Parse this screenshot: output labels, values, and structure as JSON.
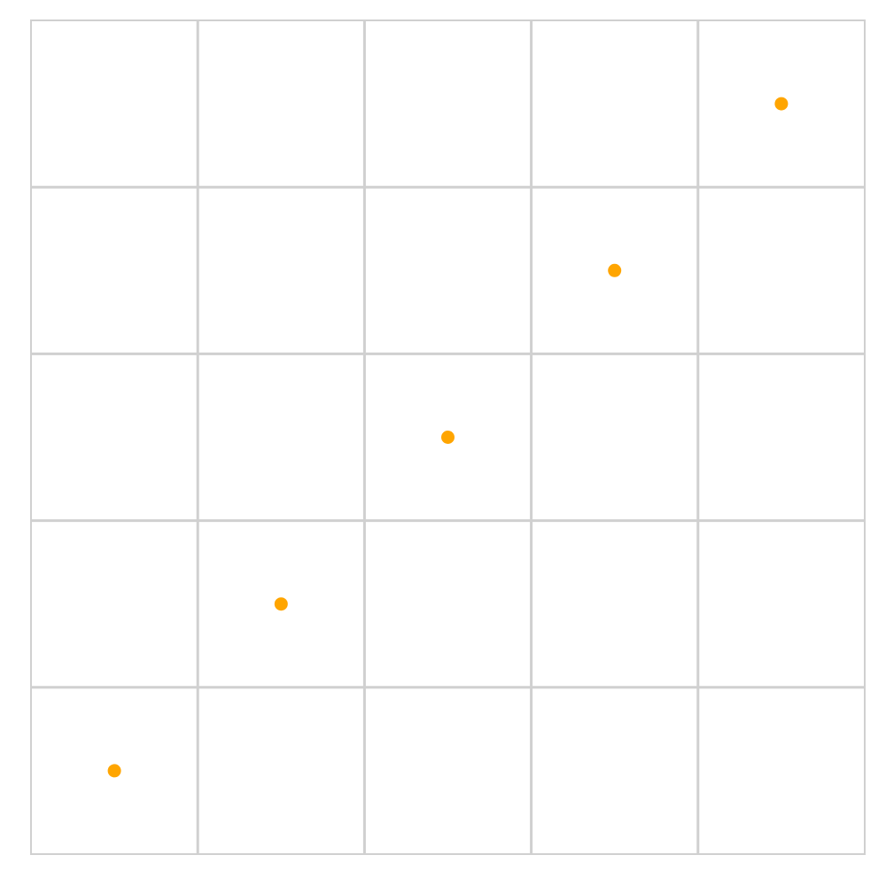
{
  "chart_data": {
    "type": "scatter",
    "title": "",
    "xlabel": "",
    "ylabel": "",
    "grid": true,
    "x_grid_cells": 5,
    "y_grid_cells": 5,
    "xlim": [
      0,
      5
    ],
    "ylim": [
      0,
      5
    ],
    "series": [
      {
        "points": [
          {
            "x": 0.5,
            "y": 0.5
          },
          {
            "x": 1.5,
            "y": 1.5
          },
          {
            "x": 2.5,
            "y": 2.5
          },
          {
            "x": 3.5,
            "y": 3.5
          },
          {
            "x": 4.5,
            "y": 4.5
          }
        ],
        "color": "#FFA500"
      }
    ],
    "grid_color": "#D0D0D0",
    "background": "#FFFFFF"
  }
}
